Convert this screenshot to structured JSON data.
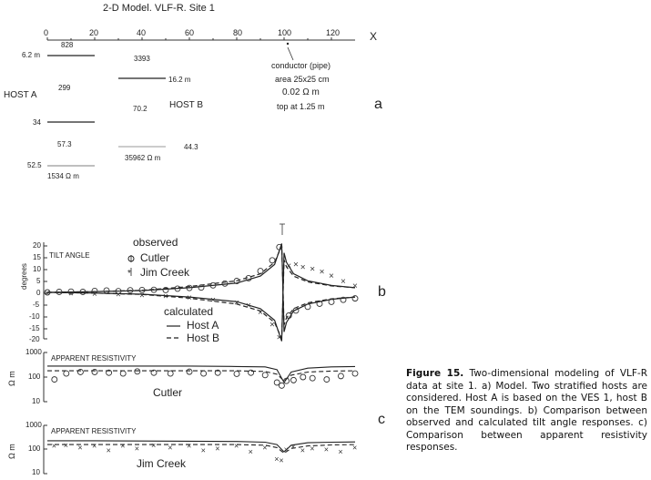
{
  "model": {
    "title": "2-D Model. VLF-R. Site 1",
    "x_ticks": [
      "0",
      "20",
      "40",
      "60",
      "80",
      "100",
      "120"
    ],
    "x_axis_label": "X",
    "depths": [
      "6.2 m",
      "34",
      "52.5"
    ],
    "host_a_label": "HOST A",
    "host_b_label": "HOST B",
    "resistivities_a": [
      "828",
      "299",
      "57.3",
      "1534 Ω m"
    ],
    "resistivities_b": [
      "3393",
      "70.2",
      "35962 Ω m"
    ],
    "host_b_depths": [
      "16.2 m",
      "44.3"
    ],
    "conductor": [
      "conductor (pipe)",
      "area 25x25 cm",
      "0.02 Ω m",
      "top at 1.25 m"
    ],
    "panel_letter": "a"
  },
  "tilt": {
    "title": "TILT ANGLE",
    "ylabel": "degrees",
    "y_ticks": [
      "20",
      "15",
      "10",
      "5",
      "0",
      "-5",
      "-10",
      "-15",
      "-20"
    ],
    "legend_observed": "observed",
    "legend_cutler": "Cutler",
    "legend_jim": "Jim Creek",
    "legend_calculated": "calculated",
    "legend_host_a": "Host A",
    "legend_host_b": "Host B",
    "panel_letter": "b"
  },
  "app_res": {
    "title": "APPARENT RESISTIVITY",
    "ylabel": "Ω m",
    "y_ticks": [
      "1000",
      "100",
      "10"
    ],
    "label_cutler": "Cutler",
    "label_jim": "Jim Creek",
    "panel_letter": "c"
  },
  "caption": {
    "bold": "Figure 15.",
    "text": " Two-dimensional modeling of VLF-R data at site 1. a) Model. Two stratified hosts are considered. Host A is based on the VES 1, host B on the TEM soundings. b) Comparison between observed and calculated tilt angle responses. c) Comparison between apparent resistivity responses."
  },
  "chart_data": [
    {
      "type": "line",
      "title": "TILT ANGLE",
      "ylabel": "degrees",
      "ylim": [
        -20,
        20
      ],
      "xlim": [
        0,
        132
      ],
      "series": [
        {
          "name": "Host A",
          "x": [
            0,
            20,
            40,
            60,
            80,
            90,
            96,
            99,
            100,
            101,
            104,
            110,
            120,
            130
          ],
          "values": [
            0,
            0.3,
            0.8,
            2,
            4,
            7,
            12,
            21,
            -17,
            -13,
            -8,
            -5,
            -3,
            -2
          ]
        },
        {
          "name": "Host B",
          "x": [
            0,
            20,
            40,
            60,
            80,
            90,
            96,
            99,
            100,
            101,
            104,
            110,
            120,
            130
          ],
          "values": [
            0,
            0.3,
            0.9,
            2.5,
            5,
            8,
            13,
            20,
            -14,
            -11,
            -7,
            -4.5,
            -2.8,
            -2
          ]
        },
        {
          "name": "Host A",
          "x": [
            0,
            20,
            40,
            60,
            80,
            90,
            96,
            99,
            100,
            101,
            104,
            110,
            120,
            130
          ],
          "values": [
            0,
            -0.3,
            -0.8,
            -2,
            -4,
            -7,
            -12,
            -21,
            17,
            13,
            8,
            5,
            3,
            2
          ]
        },
        {
          "name": "Host B",
          "x": [
            0,
            20,
            40,
            60,
            80,
            90,
            96,
            99,
            100,
            101,
            104,
            110,
            120,
            130
          ],
          "values": [
            0,
            -0.3,
            -0.9,
            -2.5,
            -5,
            -8,
            -13,
            -20,
            14,
            11,
            7,
            4.5,
            2.8,
            2
          ]
        }
      ],
      "observed_cutler": {
        "x": [
          0,
          5,
          10,
          15,
          20,
          25,
          30,
          35,
          40,
          45,
          50,
          55,
          60,
          65,
          70,
          75,
          80,
          85,
          90,
          95,
          98,
          102,
          105,
          110,
          115,
          120,
          125,
          130
        ],
        "y": [
          0,
          0.2,
          0.3,
          0.2,
          0.6,
          0.8,
          0.5,
          0.9,
          1.0,
          1.1,
          1.0,
          1.6,
          1.9,
          2.1,
          3.0,
          3.8,
          4.9,
          6.1,
          9.2,
          13.8,
          19.5,
          -10,
          -7.8,
          -6.2,
          -4.9,
          -4.1,
          -3.2,
          -2.6
        ]
      },
      "observed_jim": {
        "x": [
          0,
          10,
          20,
          30,
          40,
          50,
          60,
          70,
          80,
          85,
          90,
          95,
          98,
          102,
          105,
          108,
          112,
          116,
          120,
          125,
          130
        ],
        "y": [
          0,
          -0.2,
          -0.4,
          -0.6,
          -1.0,
          -1.3,
          -1.9,
          -3.0,
          -4.2,
          -5.3,
          -8.2,
          -13.6,
          -19.1,
          11.8,
          12.4,
          11.2,
          10.3,
          9.2,
          7.4,
          5.1,
          3.1
        ]
      }
    },
    {
      "type": "line",
      "title": "APPARENT RESISTIVITY",
      "ylabel": "Ω m",
      "ylim": [
        10,
        1000
      ],
      "scale": "log",
      "label": "Cutler",
      "series": [
        {
          "name": "Host A",
          "x": [
            0,
            20,
            40,
            60,
            80,
            92,
            97,
            100,
            103,
            110,
            120,
            130
          ],
          "values": [
            280,
            280,
            280,
            280,
            270,
            260,
            200,
            60,
            160,
            230,
            260,
            270
          ]
        },
        {
          "name": "Host B",
          "x": [
            0,
            20,
            40,
            60,
            80,
            92,
            97,
            100,
            103,
            110,
            120,
            130
          ],
          "values": [
            180,
            180,
            180,
            180,
            180,
            170,
            130,
            70,
            120,
            160,
            175,
            180
          ]
        }
      ],
      "observed": {
        "x": [
          3,
          8,
          14,
          20,
          26,
          32,
          38,
          45,
          52,
          60,
          66,
          72,
          80,
          86,
          92,
          97,
          99,
          101,
          104,
          108,
          112,
          118,
          124,
          130
        ],
        "y": [
          80,
          140,
          160,
          160,
          150,
          140,
          170,
          150,
          140,
          165,
          140,
          150,
          135,
          150,
          120,
          60,
          45,
          70,
          75,
          100,
          90,
          80,
          110,
          140
        ]
      }
    },
    {
      "type": "line",
      "title": "APPARENT RESISTIVITY",
      "ylabel": "Ω m",
      "ylim": [
        10,
        1000
      ],
      "scale": "log",
      "label": "Jim Creek",
      "series": [
        {
          "name": "Host A",
          "x": [
            0,
            20,
            40,
            60,
            80,
            92,
            97,
            100,
            103,
            110,
            120,
            130
          ],
          "values": [
            230,
            230,
            225,
            220,
            215,
            200,
            160,
            80,
            150,
            190,
            200,
            205
          ]
        },
        {
          "name": "Host B",
          "x": [
            0,
            20,
            40,
            60,
            80,
            92,
            97,
            100,
            103,
            110,
            120,
            130
          ],
          "values": [
            160,
            160,
            160,
            160,
            160,
            150,
            120,
            70,
            110,
            140,
            155,
            160
          ]
        }
      ],
      "observed": {
        "x": [
          3,
          8,
          14,
          20,
          26,
          32,
          38,
          45,
          52,
          60,
          66,
          72,
          80,
          86,
          92,
          97,
          99,
          101,
          104,
          108,
          112,
          118,
          124,
          130
        ],
        "y": [
          140,
          150,
          120,
          140,
          90,
          140,
          110,
          150,
          120,
          140,
          90,
          110,
          140,
          80,
          120,
          40,
          35,
          100,
          130,
          90,
          110,
          100,
          80,
          120
        ]
      }
    }
  ]
}
